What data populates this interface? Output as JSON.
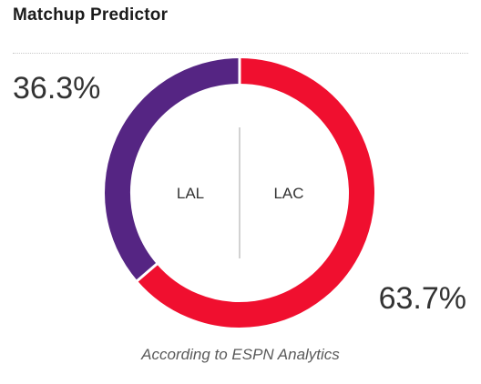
{
  "widget": {
    "title": "Matchup Predictor",
    "footnote": "According to ESPN Analytics"
  },
  "chart_data": {
    "type": "pie",
    "categories": [
      "LAL",
      "LAC"
    ],
    "values": [
      36.3,
      63.7
    ],
    "value_labels": [
      "36.3%",
      "63.7%"
    ],
    "colors": [
      "#552583",
      "#f00f2f"
    ],
    "center_labels": [
      "LAL",
      "LAC"
    ]
  },
  "colors": {
    "center_divider": "#d2d2d2",
    "text": "#333333"
  }
}
